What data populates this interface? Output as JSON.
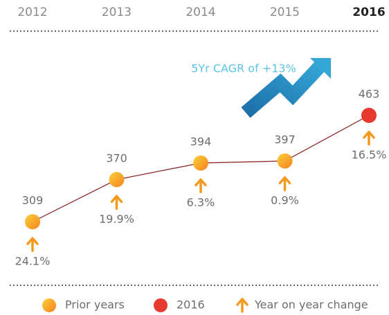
{
  "chart_data": {
    "type": "line",
    "categories": [
      "2012",
      "2013",
      "2014",
      "2015",
      "2016"
    ],
    "values": [
      309,
      370,
      394,
      397,
      463
    ],
    "line_color": "#8b1c1c",
    "marker_colors": {
      "prior": "#f7a21b",
      "current": "#e8392f"
    },
    "legend": {
      "prior": "Prior years",
      "current": "2016"
    },
    "changes": {
      "name": "Year on year change",
      "color": "#f39a1e",
      "values": [
        24.1,
        19.9,
        6.3,
        0.9,
        16.5
      ],
      "value_labels": [
        "24.1%",
        "19.9%",
        "6.3%",
        "0.9%",
        "16.5%"
      ]
    },
    "annotation": "5Yr CAGR of +13%"
  }
}
